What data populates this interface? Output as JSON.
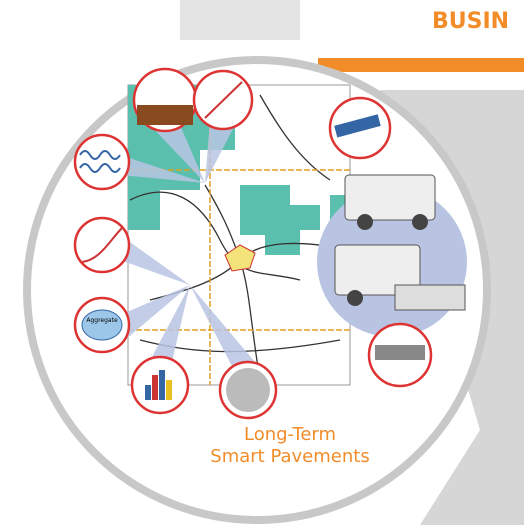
{
  "header": {
    "title": "BUSIN"
  },
  "caption": {
    "lines": [
      "Long-Term",
      "Smart Pavements"
    ]
  },
  "labels": {
    "aggregate": "Aggregate"
  }
}
